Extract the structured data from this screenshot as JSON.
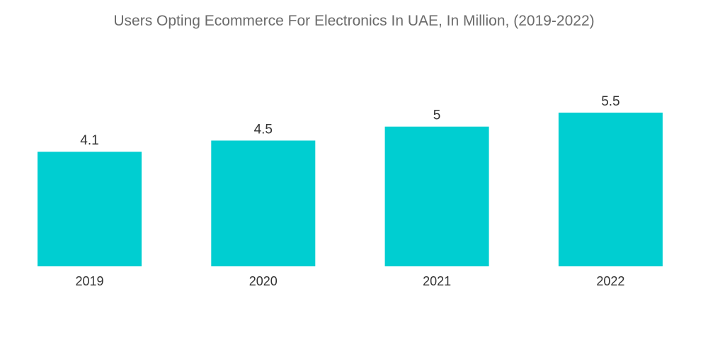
{
  "chart_data": {
    "type": "bar",
    "title": "Users Opting Ecommerce For Electronics In UAE, In Million, (2019-2022)",
    "categories": [
      "2019",
      "2020",
      "2021",
      "2022"
    ],
    "values": [
      4.1,
      4.5,
      5,
      5.5
    ],
    "value_labels": [
      "4.1",
      "4.5",
      "5",
      "5.5"
    ],
    "xlabel": "",
    "ylabel": "",
    "ylim": [
      0,
      5.5
    ],
    "bar_color": "#00CED1",
    "grid": false,
    "legend": false
  }
}
